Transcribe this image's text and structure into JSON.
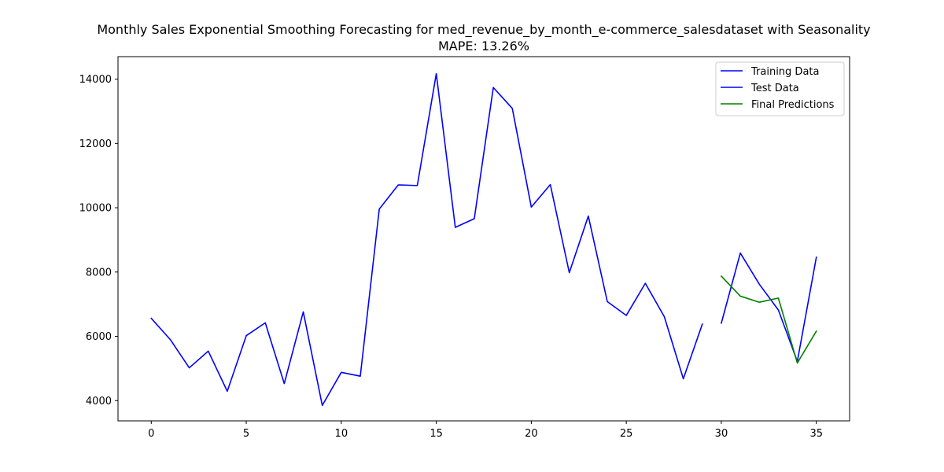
{
  "chart_data": {
    "type": "line",
    "title": "Monthly Sales Exponential Smoothing Forecasting for med_revenue_by_month_e-commerce_salesdataset with Seasonality",
    "subtitle": "MAPE: 13.26%",
    "xlabel": "",
    "ylabel": "",
    "xlim": [
      -1.75,
      36.75
    ],
    "ylim": [
      3370,
      14700
    ],
    "x_ticks": [
      0,
      5,
      10,
      15,
      20,
      25,
      30,
      35
    ],
    "y_ticks": [
      4000,
      6000,
      8000,
      10000,
      12000,
      14000
    ],
    "grid": false,
    "legend": {
      "placement": "top-right"
    },
    "series": [
      {
        "name": "Training Data",
        "color": "#0000ff",
        "x": [
          0,
          1,
          2,
          3,
          4,
          5,
          6,
          7,
          8,
          9,
          10,
          11,
          12,
          13,
          14,
          15,
          16,
          17,
          18,
          19,
          20,
          21,
          22,
          23,
          24,
          25,
          26,
          27,
          28,
          29
        ],
        "values": [
          6560,
          5900,
          5020,
          5540,
          4290,
          6020,
          6420,
          4530,
          6760,
          3850,
          4880,
          4760,
          9960,
          10710,
          10690,
          14170,
          9390,
          9660,
          13740,
          13090,
          10020,
          10720,
          7980,
          9740,
          7080,
          6650,
          7650,
          6610,
          4680,
          6380
        ]
      },
      {
        "name": "Test Data",
        "color": "#0000ff",
        "x": [
          30,
          31,
          32,
          33,
          34,
          35
        ],
        "values": [
          6410,
          8590,
          7620,
          6820,
          5220,
          8460
        ]
      },
      {
        "name": "Final Predictions",
        "color": "#008000",
        "x": [
          30,
          31,
          32,
          33,
          34,
          35
        ],
        "values": [
          7870,
          7250,
          7060,
          7190,
          5170,
          6160
        ]
      }
    ]
  }
}
